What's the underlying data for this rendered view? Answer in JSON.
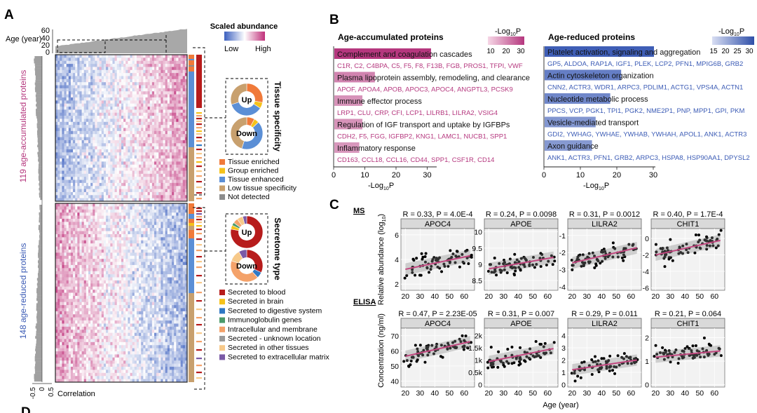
{
  "panelA": {
    "letter": "A",
    "age_label": "Age (year)",
    "age_ticks": [
      "60",
      "40",
      "20",
      "0"
    ],
    "legend_title": "Scaled abundance",
    "legend_low": "Low",
    "legend_high": "High",
    "accumulated_label": "119 age-accumulated proteins",
    "reduced_label": "148 age-reduced proteins",
    "corr_ticks": [
      "-0.5",
      "0",
      "0.5"
    ],
    "corr_label": "Correlation",
    "tissue_title": "Tissue specificity",
    "secretome_title": "Secretome type",
    "up": "Up",
    "down": "Down",
    "colors": {
      "low": "#3b5fbf",
      "high": "#c0307a",
      "grey": "#a0a0a0"
    },
    "tissue_legend": [
      {
        "label": "Tissue enriched",
        "color": "#f07a3a"
      },
      {
        "label": "Group enriched",
        "color": "#f5c21b"
      },
      {
        "label": "Tissue enhanced",
        "color": "#5b8fd6"
      },
      {
        "label": "Low tissue specificity",
        "color": "#c8a06e"
      },
      {
        "label": "Not detected",
        "color": "#8c8c8c"
      }
    ],
    "secretome_legend": [
      {
        "label": "Secreted to blood",
        "color": "#b71c1c"
      },
      {
        "label": "Secreted in brain",
        "color": "#f5c21b"
      },
      {
        "label": "Secreted to digestive system",
        "color": "#2f78c4"
      },
      {
        "label": "Immunoglobulin genes",
        "color": "#4c9a6a"
      },
      {
        "label": "Intracellular and membrane",
        "color": "#f4a26a"
      },
      {
        "label": "Secreted - unknown location",
        "color": "#9a9a9a"
      },
      {
        "label": "Secreted in other tissues",
        "color": "#f7c98a"
      },
      {
        "label": "Secreted to extracellular matrix",
        "color": "#7a5aa6"
      }
    ]
  },
  "panelB": {
    "letter": "B",
    "left_title": "Age-accumulated proteins",
    "right_title": "Age-reduced proteins",
    "scale_label_pre": "-Log",
    "scale_label_sub": "10",
    "scale_label_post": "P",
    "left_scale_ticks": [
      "10",
      "20",
      "30"
    ],
    "right_scale_ticks": [
      "15",
      "20",
      "25",
      "30"
    ],
    "axis_ticks": [
      "0",
      "10",
      "20",
      "30"
    ],
    "left_color": "#b5377e",
    "right_color": "#3b5bb5"
  },
  "panelC": {
    "letter": "C",
    "ms_label": "MS",
    "elisa_label": "ELISA",
    "ms_ylabel": "Relative abundance (log",
    "ms_ylabel_sub": "10",
    "ms_ylabel_post": ")",
    "elisa_ylabel": "Concentration (ng/ml)",
    "xlabel": "Age (year)",
    "x_ticks": [
      "20",
      "30",
      "40",
      "50",
      "60"
    ],
    "ms_panels": [
      {
        "protein": "APOC4",
        "stat": "R = 0.33, P = 4.0E-4",
        "y_ticks": [
          "6",
          "4",
          "2"
        ]
      },
      {
        "protein": "APOE",
        "stat": "R = 0.24, P = 0.0098",
        "y_ticks": [
          "10",
          "9.5",
          "9",
          "8.5"
        ]
      },
      {
        "protein": "LILRA2",
        "stat": "R = 0.31, P = 0.0012",
        "y_ticks": [
          "-1",
          "-2",
          "-3",
          "-4"
        ]
      },
      {
        "protein": "CHIT1",
        "stat": "R = 0.40, P = 1.7E-4",
        "y_ticks": [
          "0",
          "-2",
          "-4",
          "-6"
        ]
      }
    ],
    "elisa_panels": [
      {
        "protein": "APOC4",
        "stat": "R = 0.47, P = 2.23E-05",
        "y_ticks": [
          "70",
          "60",
          "50",
          "40"
        ]
      },
      {
        "protein": "APOE",
        "stat": "R = 0.31, P = 0.007",
        "y_ticks": [
          "2k",
          "1.5k",
          "1k",
          "0.5k",
          "0"
        ]
      },
      {
        "protein": "LILRA2",
        "stat": "R = 0.29, P = 0.011",
        "y_ticks": [
          "4",
          "3",
          "2",
          "1",
          "0"
        ]
      },
      {
        "protein": "CHIT1",
        "stat": "R = 0.21, P = 0.064",
        "y_ticks": [
          "2",
          "1",
          "0"
        ]
      }
    ]
  },
  "panelD": {
    "letter": "D"
  },
  "chart_data": [
    {
      "type": "bar",
      "title": "Age-accumulated proteins",
      "xlabel": "-Log10P",
      "xlim": [
        0,
        35
      ],
      "categories": [
        "Complement and coagulation cascades",
        "Plasma lipoprotein assembly, remodeling, and clearance",
        "Immune effector process",
        "Regulation of IGF transport and uptake by IGFBPs",
        "Inflammatory response"
      ],
      "values": [
        31,
        13,
        9,
        9,
        8
      ],
      "genes": [
        "C1R, C2, C4BPA, C5, F5, F8, F13B, FGB, PROS1, TFPI, VWF",
        "APOF, APOA4, APOB, APOC3, APOC4, ANGPTL3, PCSK9",
        "LRP1, CLU, CRP, CFI, LCP1, LILRB1, LILRA2, VSIG4",
        "CDH2, F5, FGG, IGFBP2, KNG1, LAMC1, NUCB1, SPP1",
        "CD163, CCL18, CCL16, CD44, SPP1, CSF1R, CD14"
      ]
    },
    {
      "type": "bar",
      "title": "Age-reduced proteins",
      "xlabel": "-Log10P",
      "xlim": [
        0,
        35
      ],
      "categories": [
        "Platelet activation, signaling and aggregation",
        "Actin cytoskeleton organization",
        "Nucleotide metabolic process",
        "Vesicle-mediated transport",
        "Axon guidance"
      ],
      "values": [
        30,
        21,
        18,
        14,
        13
      ],
      "genes": [
        "GP5, ALDOA, RAP1A, IGF1, PLEK, LCP2, PFN1, MPIG6B, GRB2",
        "CNN2, ACTR3, WDR1, ARPC3, PDLIM1, ACTG1, VPS4A, ACTN1",
        "PPCS, VCP, PGK1, TPI1, PGK2, NME2P1, PNP, MPP1, GPI, PKM",
        "GDI2, YWHAG, YWHAE, YWHAB, YWHAH, APOL1, ANK1, ACTR3",
        "ANK1, ACTR3, PFN1, GRB2, ARPC3, HSPA8, HSP90AA1, DPYSL2"
      ]
    },
    {
      "type": "scatter",
      "title": "MS APOC4",
      "xlabel": "Age (year)",
      "ylabel": "Relative abundance (log10)",
      "xlim": [
        17,
        67
      ],
      "ylim": [
        1.5,
        6.5
      ],
      "slope": 0.025,
      "intercept": 2.7
    },
    {
      "type": "scatter",
      "title": "MS APOE",
      "xlabel": "Age (year)",
      "ylabel": "Relative abundance (log10)",
      "xlim": [
        17,
        67
      ],
      "ylim": [
        8.2,
        10.1
      ],
      "slope": 0.008,
      "intercept": 8.7
    },
    {
      "type": "scatter",
      "title": "MS LILRA2",
      "xlabel": "Age (year)",
      "ylabel": "Relative abundance (log10)",
      "xlim": [
        17,
        67
      ],
      "ylim": [
        -4.2,
        -0.6
      ],
      "slope": 0.02,
      "intercept": -3.0
    },
    {
      "type": "scatter",
      "title": "MS CHIT1",
      "xlabel": "Age (year)",
      "ylabel": "Relative abundance (log10)",
      "xlim": [
        17,
        67
      ],
      "ylim": [
        -6.3,
        1.2
      ],
      "slope": 0.04,
      "intercept": -2.8
    },
    {
      "type": "scatter",
      "title": "ELISA APOC4",
      "xlabel": "Age (year)",
      "ylabel": "Concentration (ng/ml)",
      "xlim": [
        17,
        67
      ],
      "ylim": [
        36,
        75
      ],
      "slope": 0.22,
      "intercept": 52
    },
    {
      "type": "scatter",
      "title": "ELISA APOE",
      "xlabel": "Age (year)",
      "ylabel": "Concentration (ng/ml)",
      "xlim": [
        17,
        67
      ],
      "ylim": [
        -100,
        2300
      ],
      "slope": 12,
      "intercept": 700
    },
    {
      "type": "scatter",
      "title": "ELISA LILRA2",
      "xlabel": "Age (year)",
      "ylabel": "Concentration (ng/ml)",
      "xlim": [
        17,
        67
      ],
      "ylim": [
        -0.2,
        4.6
      ],
      "slope": 0.018,
      "intercept": 0.85
    },
    {
      "type": "scatter",
      "title": "ELISA CHIT1",
      "xlabel": "Age (year)",
      "ylabel": "Concentration (ng/ml)",
      "xlim": [
        17,
        67
      ],
      "ylim": [
        -0.1,
        2.4
      ],
      "slope": 0.006,
      "intercept": 1.05
    }
  ]
}
